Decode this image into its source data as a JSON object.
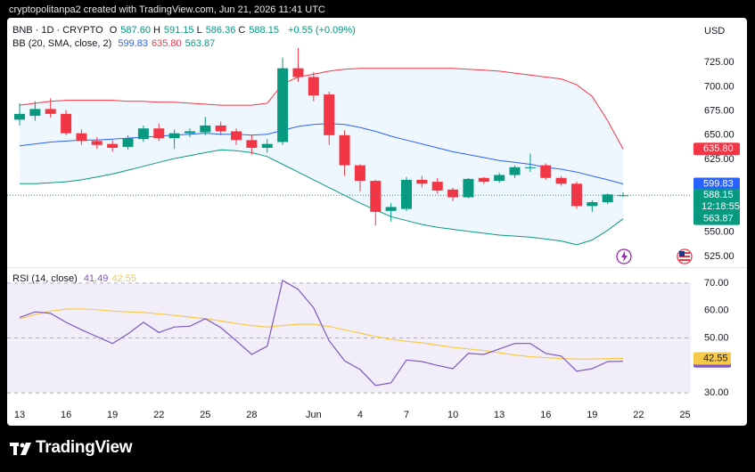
{
  "header": "cryptopolitanpa2 created with TradingView.com, Jun 21, 2026 11:41 UTC",
  "brand": "TradingView",
  "chart_data": [
    {
      "type": "candlestick",
      "title": "BNB · 1D · CRYPTO",
      "ohlc_legend": [
        {
          "key": "O",
          "value": "587.60"
        },
        {
          "key": "H",
          "value": "591.15"
        },
        {
          "key": "L",
          "value": "586.36"
        },
        {
          "key": "C",
          "value": "588.15"
        }
      ],
      "change": "+0.55 (+0.09%)",
      "currency": "USD",
      "categories": [
        "13",
        null,
        null,
        "16",
        null,
        null,
        "19",
        null,
        null,
        "22",
        null,
        null,
        "25",
        null,
        null,
        "28",
        null,
        null,
        null,
        "Jun",
        null,
        null,
        "4",
        null,
        null,
        "7",
        null,
        null,
        "10",
        null,
        null,
        "13",
        null,
        null,
        "16",
        null,
        null,
        "19",
        null,
        null,
        "22",
        null,
        null,
        "25"
      ],
      "open": [
        666,
        670,
        677,
        672,
        652,
        644,
        641,
        638,
        646,
        657,
        647,
        652,
        653,
        660,
        654,
        645,
        637,
        643,
        719,
        710,
        692,
        650,
        619,
        603,
        572,
        574,
        604,
        602,
        594,
        586,
        606,
        603,
        609,
        616,
        619,
        606,
        600,
        577,
        581,
        587.6,
        null,
        null,
        null,
        null
      ],
      "high": [
        683,
        685,
        688,
        676,
        656,
        648,
        645,
        650,
        660,
        662,
        656,
        657,
        669,
        664,
        657,
        650,
        646,
        730,
        740,
        715,
        695,
        655,
        620,
        604,
        580,
        607,
        608,
        606,
        596,
        606,
        607,
        611,
        619,
        631,
        621,
        608,
        602,
        583,
        590,
        591.15,
        null,
        null,
        null,
        null
      ],
      "low": [
        660,
        665,
        668,
        650,
        640,
        636,
        633,
        635,
        643,
        644,
        636,
        648,
        650,
        650,
        640,
        630,
        632,
        640,
        705,
        685,
        640,
        608,
        592,
        557,
        561,
        572,
        596,
        590,
        582,
        585,
        600,
        601,
        606,
        612,
        604,
        598,
        574,
        571,
        579,
        586.36,
        null,
        null,
        null,
        null
      ],
      "close": [
        672,
        677,
        672,
        652,
        644,
        640,
        637,
        647,
        657,
        647,
        652,
        654,
        660,
        654,
        645,
        637,
        641,
        719,
        710,
        691,
        650,
        619,
        603,
        571,
        576,
        604,
        600,
        593,
        586,
        605,
        602,
        609,
        617,
        617,
        606,
        600,
        577,
        581,
        589,
        588.15,
        null,
        null,
        null,
        null
      ],
      "up_color": "#089981",
      "down_color": "#f23645",
      "last_label": "588.15",
      "countdown": "12:18:55",
      "indicator": {
        "title": "BB (20, SMA, close, 2)",
        "fill": "#2196f3",
        "series": [
          {
            "color": "#2962ff",
            "last_label": "599.83",
            "values": [
              639,
              641,
              643,
              644,
              645,
              645,
              646,
              647,
              648,
              649,
              650,
              651,
              652,
              651,
              651,
              650,
              651,
              655,
              659,
              661,
              662,
              661,
              658,
              654,
              649,
              645,
              641,
              637,
              633,
              630,
              627,
              624,
              622,
              620,
              617,
              615,
              612,
              608,
              604,
              599.83,
              null,
              null,
              null,
              null
            ]
          },
          {
            "color": "#f23645",
            "last_label": "635.80",
            "values": [
              681,
              683,
              685,
              686,
              686,
              686,
              686,
              685,
              685,
              684,
              684,
              683,
              682,
              681,
              681,
              681,
              683,
              703,
              710,
              713,
              716,
              718,
              719,
              719,
              719,
              719,
              719,
              719,
              719,
              718,
              717,
              716,
              714,
              712,
              710,
              708,
              702,
              690,
              665,
              635.8,
              null,
              null,
              null,
              null
            ]
          },
          {
            "color": "#089981",
            "last_label": "563.87",
            "values": [
              600,
              600,
              601,
              602,
              604,
              607,
              610,
              614,
              618,
              622,
              626,
              629,
              632,
              635,
              634,
              632,
              628,
              620,
              612,
              604,
              596,
              588,
              580,
              573,
              566,
              562,
              558,
              555,
              553,
              551,
              549,
              547,
              546,
              545,
              543,
              541,
              537,
              542,
              552,
              563.87,
              null,
              null,
              null,
              null
            ]
          }
        ]
      },
      "ylim": [
        514,
        771
      ],
      "yticks": [
        {
          "value": 525,
          "label": "525.00"
        },
        {
          "value": 550,
          "label": "550.00"
        },
        {
          "value": 625,
          "label": "625.00"
        },
        {
          "value": 650,
          "label": "650.00"
        },
        {
          "value": 675,
          "label": "675.00"
        },
        {
          "value": 700,
          "label": "700.00"
        },
        {
          "value": 725,
          "label": "725.00"
        }
      ],
      "grid": false
    },
    {
      "type": "line",
      "title": "RSI (14, close)",
      "series": [
        {
          "color": "#7e57c2",
          "last_label": "41.49",
          "values": [
            57.5,
            59.5,
            59,
            55.7,
            53,
            50.5,
            48,
            51.5,
            55.7,
            52,
            54,
            54.3,
            57,
            53.8,
            49,
            44,
            47,
            71,
            67.7,
            61,
            49,
            41.7,
            38.5,
            32.7,
            33.6,
            42,
            41.4,
            40,
            38.8,
            44.4,
            44,
            46,
            48,
            48,
            44.4,
            43.4,
            37.9,
            38.8,
            41.4,
            41.49,
            null,
            null,
            null,
            null
          ]
        },
        {
          "color": "#f7c948",
          "last_label": "42.55",
          "values": [
            57,
            58.5,
            59.8,
            60.5,
            60.6,
            60.3,
            59.8,
            59.5,
            59.3,
            58.8,
            58.2,
            57.6,
            57,
            56.2,
            55.3,
            54.5,
            54,
            54.5,
            55,
            55,
            54.2,
            53,
            51.8,
            50.5,
            49.5,
            48.8,
            48.2,
            47.4,
            46.6,
            46,
            45.4,
            44.6,
            43.8,
            43.2,
            42.8,
            42.5,
            42.3,
            42.3,
            42.5,
            42.55,
            null,
            null,
            null,
            null
          ]
        }
      ],
      "levels": [
        70,
        50,
        30
      ],
      "fill": "#7e57c2",
      "ylim": [
        25.5,
        75.8
      ],
      "yticks": [
        {
          "value": 30,
          "label": "30.00"
        },
        {
          "value": 50,
          "label": "50.00"
        },
        {
          "value": 60,
          "label": "60.00"
        },
        {
          "value": 70,
          "label": "70.00"
        }
      ],
      "grid": false
    }
  ]
}
